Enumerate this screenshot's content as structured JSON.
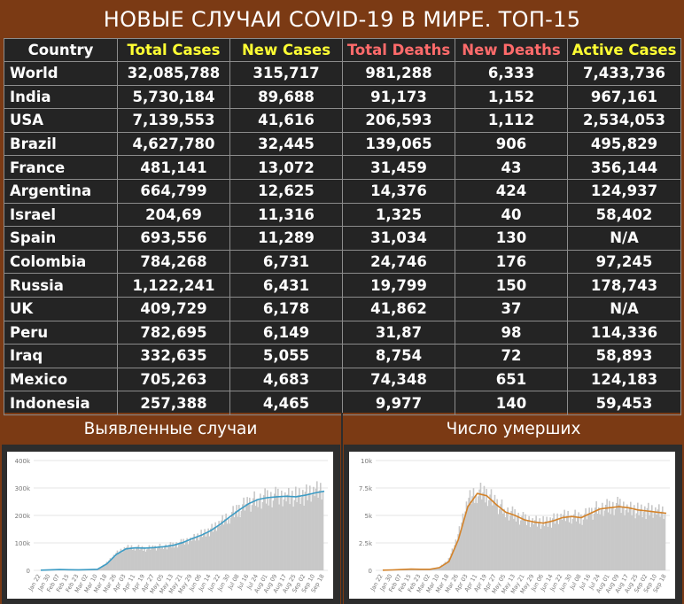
{
  "title": "НОВЫЕ СЛУЧАИ COVID-19 В МИРЕ. ТОП-15",
  "headers": [
    "Country",
    "Total Cases",
    "New Cases",
    "Total Deaths",
    "New Deaths",
    "Active Cases"
  ],
  "colors": {
    "background": "#7b3a14",
    "table_bg": "#242424",
    "header_yellow": "#ffff33",
    "header_pink": "#ff6b6b",
    "cases_line": "#3d9cc5",
    "deaths_line": "#d4832a",
    "bars": "#c8c8c8"
  },
  "rows": [
    [
      "World",
      "32,085,788",
      "315,717",
      "981,288",
      "6,333",
      "7,433,736"
    ],
    [
      "India",
      "5,730,184",
      "89,688",
      "91,173",
      "1,152",
      "967,161"
    ],
    [
      "USA",
      "7,139,553",
      "41,616",
      "206,593",
      "1,112",
      "2,534,053"
    ],
    [
      "Brazil",
      "4,627,780",
      "32,445",
      "139,065",
      "906",
      "495,829"
    ],
    [
      "France",
      "481,141",
      "13,072",
      "31,459",
      "43",
      "356,144"
    ],
    [
      "Argentina",
      "664,799",
      "12,625",
      "14,376",
      "424",
      "124,937"
    ],
    [
      "Israel",
      "204,69",
      "11,316",
      "1,325",
      "40",
      "58,402"
    ],
    [
      "Spain",
      "693,556",
      "11,289",
      "31,034",
      "130",
      "N/A"
    ],
    [
      "Colombia",
      "784,268",
      "6,731",
      "24,746",
      "176",
      "97,245"
    ],
    [
      "Russia",
      "1,122,241",
      "6,431",
      "19,799",
      "150",
      "178,743"
    ],
    [
      "UK",
      "409,729",
      "6,178",
      "41,862",
      "37",
      "N/A"
    ],
    [
      "Peru",
      "782,695",
      "6,149",
      "31,87",
      "98",
      "114,336"
    ],
    [
      "Iraq",
      "332,635",
      "5,055",
      "8,754",
      "72",
      "58,893"
    ],
    [
      "Mexico",
      "705,263",
      "4,683",
      "74,348",
      "651",
      "124,183"
    ],
    [
      "Indonesia",
      "257,388",
      "4,465",
      "9,977",
      "140",
      "59,453"
    ]
  ],
  "cases_section_title": "Выявленные случаи",
  "deaths_section_title": "Число умерших",
  "chart_data": [
    {
      "type": "bar",
      "title": "Выявленные случаи",
      "ylim": [
        0,
        400000
      ],
      "y_ticks": [
        "0",
        "100k",
        "200k",
        "300k",
        "400k"
      ],
      "y_tick_values": [
        0,
        100000,
        200000,
        300000,
        400000
      ],
      "x_ticks": [
        "Jan 22",
        "Jan 30",
        "Feb 07",
        "Feb 15",
        "Feb 23",
        "Mar 02",
        "Mar 10",
        "Mar 18",
        "Mar 26",
        "Apr 03",
        "Apr 11",
        "Apr 19",
        "Apr 27",
        "May 05",
        "May 13",
        "May 21",
        "May 29",
        "Jun 06",
        "Jun 14",
        "Jun 22",
        "Jun 30",
        "Jul 08",
        "Jul 16",
        "Jul 24",
        "Aug 01",
        "Aug 09",
        "Aug 17",
        "Aug 25",
        "Sep 02",
        "Sep 10",
        "Sep 18"
      ],
      "series": [
        {
          "kind": "bar",
          "x": [
            "Jan 22",
            "Jan 30",
            "Feb 07",
            "Feb 15",
            "Feb 23",
            "Mar 02",
            "Mar 10",
            "Mar 18",
            "Mar 26",
            "Apr 03",
            "Apr 11",
            "Apr 19",
            "Apr 27",
            "May 05",
            "May 13",
            "May 21",
            "May 29",
            "Jun 06",
            "Jun 14",
            "Jun 22",
            "Jun 30",
            "Jul 08",
            "Jul 16",
            "Jul 24",
            "Aug 01",
            "Aug 09",
            "Aug 17",
            "Aug 25",
            "Sep 02",
            "Sep 10",
            "Sep 18"
          ],
          "values": [
            500,
            2000,
            3000,
            2000,
            1500,
            2500,
            4500,
            28000,
            62000,
            82000,
            85000,
            80000,
            84000,
            88000,
            93000,
            103000,
            118000,
            132000,
            148000,
            173000,
            200000,
            225000,
            248000,
            262000,
            268000,
            272000,
            276000,
            272000,
            278000,
            288000,
            295000
          ]
        },
        {
          "kind": "line",
          "x": [
            "Jan 22",
            "Jan 30",
            "Feb 07",
            "Feb 15",
            "Feb 23",
            "Mar 02",
            "Mar 10",
            "Mar 18",
            "Mar 26",
            "Apr 03",
            "Apr 11",
            "Apr 19",
            "Apr 27",
            "May 05",
            "May 13",
            "May 21",
            "May 29",
            "Jun 06",
            "Jun 14",
            "Jun 22",
            "Jun 30",
            "Jul 08",
            "Jul 16",
            "Jul 24",
            "Aug 01",
            "Aug 09",
            "Aug 17",
            "Aug 25",
            "Sep 02",
            "Sep 10",
            "Sep 18"
          ],
          "values": [
            500,
            2000,
            2800,
            2200,
            1800,
            2500,
            4000,
            24000,
            58000,
            78000,
            82000,
            81000,
            83000,
            86000,
            91000,
            101000,
            115000,
            128000,
            145000,
            168000,
            195000,
            220000,
            243000,
            258000,
            265000,
            268000,
            270000,
            268000,
            274000,
            282000,
            288000
          ]
        }
      ]
    },
    {
      "type": "bar",
      "title": "Число умерших",
      "ylim": [
        0,
        10000
      ],
      "y_ticks": [
        "0",
        "2.5k",
        "5k",
        "7.5k",
        "10k"
      ],
      "y_tick_values": [
        0,
        2500,
        5000,
        7500,
        10000
      ],
      "x_ticks": [
        "Jan 22",
        "Jan 30",
        "Feb 07",
        "Feb 15",
        "Feb 23",
        "Mar 02",
        "Mar 10",
        "Mar 18",
        "Mar 26",
        "Apr 03",
        "Apr 11",
        "Apr 19",
        "Apr 27",
        "May 05",
        "May 13",
        "May 21",
        "May 29",
        "Jun 06",
        "Jun 14",
        "Jun 22",
        "Jun 30",
        "Jul 08",
        "Jul 16",
        "Jul 24",
        "Aug 01",
        "Aug 09",
        "Aug 17",
        "Aug 25",
        "Sep 02",
        "Sep 10",
        "Sep 18"
      ],
      "series": [
        {
          "kind": "bar",
          "x": [
            "Jan 22",
            "Jan 30",
            "Feb 07",
            "Feb 15",
            "Feb 23",
            "Mar 02",
            "Mar 10",
            "Mar 18",
            "Mar 26",
            "Apr 03",
            "Apr 11",
            "Apr 19",
            "Apr 27",
            "May 05",
            "May 13",
            "May 21",
            "May 29",
            "Jun 06",
            "Jun 14",
            "Jun 22",
            "Jun 30",
            "Jul 08",
            "Jul 16",
            "Jul 24",
            "Aug 01",
            "Aug 09",
            "Aug 17",
            "Aug 25",
            "Sep 02",
            "Sep 10",
            "Sep 18"
          ],
          "values": [
            20,
            40,
            80,
            120,
            90,
            100,
            300,
            1000,
            3200,
            6300,
            7200,
            7000,
            6200,
            5500,
            5100,
            4700,
            4600,
            4400,
            4600,
            4900,
            5000,
            4800,
            5300,
            5800,
            5800,
            6000,
            5800,
            5500,
            5500,
            5400,
            5300
          ]
        },
        {
          "kind": "line",
          "x": [
            "Jan 22",
            "Jan 30",
            "Feb 07",
            "Feb 15",
            "Feb 23",
            "Mar 02",
            "Mar 10",
            "Mar 18",
            "Mar 26",
            "Apr 03",
            "Apr 11",
            "Apr 19",
            "Apr 27",
            "May 05",
            "May 13",
            "May 21",
            "May 29",
            "Jun 06",
            "Jun 14",
            "Jun 22",
            "Jun 30",
            "Jul 08",
            "Jul 16",
            "Jul 24",
            "Aug 01",
            "Aug 09",
            "Aug 17",
            "Aug 25",
            "Sep 02",
            "Sep 10",
            "Sep 18"
          ],
          "values": [
            20,
            40,
            70,
            110,
            100,
            100,
            250,
            800,
            2800,
            5800,
            7000,
            6800,
            6000,
            5300,
            5000,
            4600,
            4400,
            4300,
            4500,
            4800,
            4900,
            4800,
            5200,
            5600,
            5700,
            5800,
            5700,
            5500,
            5400,
            5300,
            5200
          ]
        }
      ]
    }
  ]
}
